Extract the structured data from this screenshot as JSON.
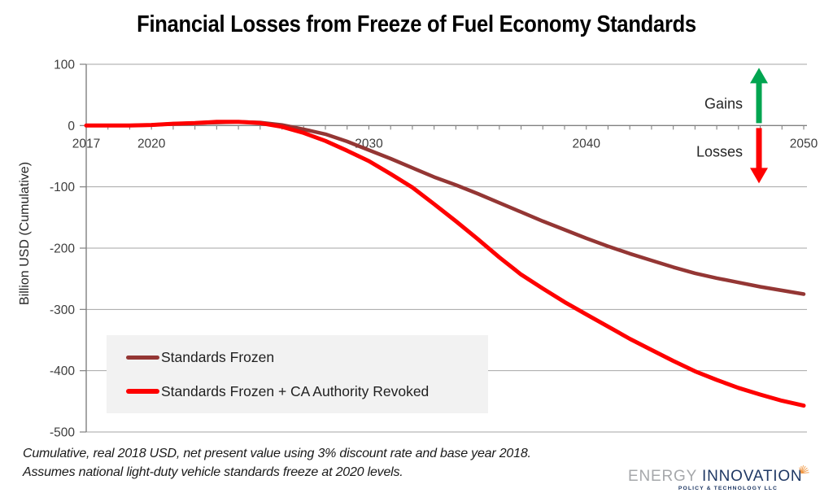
{
  "title": "Financial Losses from Freeze of Fuel Economy Standards",
  "y_axis": {
    "label": "Billion USD (Cumulative)",
    "ticks": [
      100,
      0,
      -100,
      -200,
      -300,
      -400,
      -500
    ]
  },
  "x_axis": {
    "labels": [
      2017,
      2020,
      2030,
      2040,
      2050
    ]
  },
  "legend": {
    "items": [
      {
        "label": "Standards Frozen",
        "color": "#943634"
      },
      {
        "label": "Standards Frozen + CA Authority Revoked",
        "color": "#fe0000"
      }
    ]
  },
  "annotations": {
    "gains_label": "Gains",
    "losses_label": "Losses"
  },
  "footnote": {
    "line1": "Cumulative, real 2018 USD, net present value using 3% discount rate and base year 2018.",
    "line2": "Assumes national light-duty vehicle standards freeze at 2020 levels."
  },
  "logo": {
    "word1": "ENERGY",
    "word2": "INNOVATION",
    "subtitle": "POLICY & TECHNOLOGY LLC"
  },
  "colors": {
    "standards_frozen": "#943634",
    "ca_revoked": "#fe0000",
    "gains_arrow": "#00a550",
    "losses_arrow": "#fe0000",
    "gridline": "#a6a6a6",
    "axis": "#808080",
    "tick_label": "#3d3d3d",
    "annotation_text": "#262626",
    "legend_bg": "#f2f2f2"
  },
  "chart_data": {
    "type": "line",
    "title": "Financial Losses from Freeze of Fuel Economy Standards",
    "xlabel": "",
    "ylabel": "Billion USD (Cumulative)",
    "xlim": [
      2017,
      2050
    ],
    "ylim": [
      -500,
      100
    ],
    "grid": true,
    "legend_position": "inside lower-left",
    "x": [
      2017,
      2018,
      2019,
      2020,
      2021,
      2022,
      2023,
      2024,
      2025,
      2026,
      2027,
      2028,
      2029,
      2030,
      2031,
      2032,
      2033,
      2034,
      2035,
      2036,
      2037,
      2038,
      2039,
      2040,
      2041,
      2042,
      2043,
      2044,
      2045,
      2046,
      2047,
      2048,
      2049,
      2050
    ],
    "series": [
      {
        "name": "Standards Frozen",
        "color": "#943634",
        "values": [
          0,
          0,
          0,
          1,
          3,
          4,
          5,
          6,
          5,
          1,
          -6,
          -14,
          -26,
          -40,
          -54,
          -69,
          -84,
          -97,
          -111,
          -126,
          -141,
          -156,
          -170,
          -184,
          -197,
          -209,
          -220,
          -231,
          -241,
          -249,
          -256,
          -263,
          -269,
          -275
        ]
      },
      {
        "name": "Standards Frozen + CA Authority Revoked",
        "color": "#fe0000",
        "values": [
          0,
          0,
          0,
          1,
          3,
          4,
          6,
          6,
          4,
          -2,
          -12,
          -25,
          -41,
          -58,
          -79,
          -101,
          -128,
          -156,
          -185,
          -215,
          -243,
          -266,
          -288,
          -308,
          -328,
          -348,
          -366,
          -384,
          -401,
          -415,
          -428,
          -439,
          -449,
          -457
        ]
      }
    ]
  }
}
